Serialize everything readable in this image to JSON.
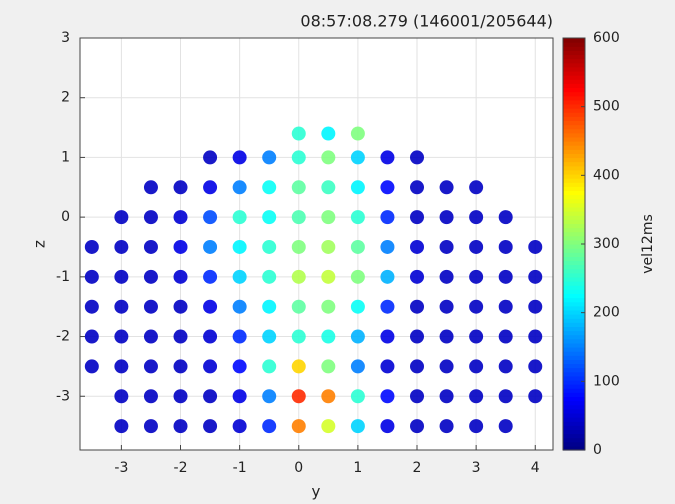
{
  "chart_data": {
    "type": "scatter",
    "title": "08:57:08.279 (146001/205644)",
    "x_label": "y",
    "y_label": "z",
    "xlim": [
      -3.7,
      4.3
    ],
    "xticks": [
      -3,
      -2,
      -1,
      0,
      1,
      2,
      3,
      4
    ],
    "ylim": [
      -3.9,
      3
    ],
    "yticks": [
      -3,
      -2,
      -1,
      0,
      1,
      2,
      3
    ],
    "grid": true,
    "colormap": "jet",
    "colorbar_label": "vel12ms",
    "clim": [
      0,
      600
    ],
    "cticks": [
      0,
      100,
      200,
      300,
      400,
      500,
      600
    ],
    "x": [
      0,
      0.5,
      1,
      -1.5,
      -1,
      -0.5,
      0,
      0.5,
      1,
      1.5,
      2,
      -2.5,
      -2,
      -1.5,
      -1,
      -0.5,
      0,
      0.5,
      1,
      1.5,
      2,
      2.5,
      3,
      -3,
      -2.5,
      -2,
      -1.5,
      -1,
      -0.5,
      0,
      0.5,
      1,
      1.5,
      2,
      2.5,
      3,
      3.5,
      -3.5,
      -3,
      -2.5,
      -2,
      -1.5,
      -1,
      -0.5,
      0,
      0.5,
      1,
      1.5,
      2,
      2.5,
      3,
      3.5,
      4,
      -3.5,
      -3,
      -2.5,
      -2,
      -1.5,
      -1,
      -0.5,
      0,
      0.5,
      1,
      1.5,
      2,
      2.5,
      3,
      3.5,
      4,
      -3.5,
      -3,
      -2.5,
      -2,
      -1.5,
      -1,
      -0.5,
      0,
      0.5,
      1,
      1.5,
      2,
      2.5,
      3,
      3.5,
      4,
      -3.5,
      -3,
      -2.5,
      -2,
      -1.5,
      -1,
      -0.5,
      0,
      0.5,
      1,
      1.5,
      2,
      2.5,
      3,
      3.5,
      4,
      -3.5,
      -3,
      -2.5,
      -2,
      -1.5,
      -1,
      -0.5,
      0,
      0.5,
      1,
      1.5,
      2,
      2.5,
      3,
      3.5,
      4,
      -3,
      -2.5,
      -2,
      -1.5,
      -1,
      -0.5,
      0,
      0.5,
      1,
      1.5,
      2,
      2.5,
      3,
      3.5,
      4,
      -3,
      -2.5,
      -2,
      -1.5,
      -1,
      -0.5,
      0,
      0.5,
      1,
      1.5,
      2,
      2.5,
      3,
      3.5
    ],
    "y": [
      1.4,
      1.4,
      1.4,
      1,
      1,
      1,
      1,
      1,
      1,
      1,
      1,
      0.5,
      0.5,
      0.5,
      0.5,
      0.5,
      0.5,
      0.5,
      0.5,
      0.5,
      0.5,
      0.5,
      0.5,
      0,
      0,
      0,
      0,
      0,
      0,
      0,
      0,
      0,
      0,
      0,
      0,
      0,
      0,
      -0.5,
      -0.5,
      -0.5,
      -0.5,
      -0.5,
      -0.5,
      -0.5,
      -0.5,
      -0.5,
      -0.5,
      -0.5,
      -0.5,
      -0.5,
      -0.5,
      -0.5,
      -0.5,
      -1,
      -1,
      -1,
      -1,
      -1,
      -1,
      -1,
      -1,
      -1,
      -1,
      -1,
      -1,
      -1,
      -1,
      -1,
      -1,
      -1.5,
      -1.5,
      -1.5,
      -1.5,
      -1.5,
      -1.5,
      -1.5,
      -1.5,
      -1.5,
      -1.5,
      -1.5,
      -1.5,
      -1.5,
      -1.5,
      -1.5,
      -1.5,
      -2,
      -2,
      -2,
      -2,
      -2,
      -2,
      -2,
      -2,
      -2,
      -2,
      -2,
      -2,
      -2,
      -2,
      -2,
      -2,
      -2.5,
      -2.5,
      -2.5,
      -2.5,
      -2.5,
      -2.5,
      -2.5,
      -2.5,
      -2.5,
      -2.5,
      -2.5,
      -2.5,
      -2.5,
      -2.5,
      -2.5,
      -2.5,
      -3,
      -3,
      -3,
      -3,
      -3,
      -3,
      -3,
      -3,
      -3,
      -3,
      -3,
      -3,
      -3,
      -3,
      -3,
      -3.5,
      -3.5,
      -3.5,
      -3.5,
      -3.5,
      -3.5,
      -3.5,
      -3.5,
      -3.5,
      -3.5,
      -3.5,
      -3.5,
      -3.5,
      -3.5
    ],
    "values": [
      250,
      220,
      300,
      40,
      60,
      150,
      250,
      300,
      200,
      60,
      40,
      40,
      40,
      60,
      150,
      230,
      280,
      260,
      220,
      80,
      40,
      40,
      40,
      40,
      40,
      50,
      120,
      250,
      230,
      270,
      300,
      250,
      100,
      40,
      40,
      40,
      40,
      40,
      40,
      40,
      60,
      150,
      220,
      250,
      300,
      320,
      280,
      150,
      50,
      40,
      40,
      40,
      40,
      40,
      40,
      40,
      50,
      100,
      200,
      250,
      330,
      340,
      300,
      180,
      50,
      40,
      40,
      40,
      40,
      40,
      40,
      40,
      40,
      60,
      150,
      220,
      280,
      300,
      230,
      100,
      40,
      40,
      40,
      40,
      40,
      40,
      40,
      40,
      40,
      50,
      100,
      200,
      250,
      240,
      180,
      60,
      40,
      40,
      40,
      40,
      40,
      40,
      40,
      40,
      40,
      50,
      80,
      250,
      400,
      300,
      150,
      50,
      40,
      40,
      40,
      40,
      40,
      40,
      40,
      40,
      40,
      60,
      150,
      500,
      450,
      250,
      80,
      40,
      40,
      40,
      40,
      40,
      40,
      40,
      40,
      40,
      50,
      100,
      450,
      350,
      200,
      60,
      40,
      40,
      40,
      40
    ]
  }
}
